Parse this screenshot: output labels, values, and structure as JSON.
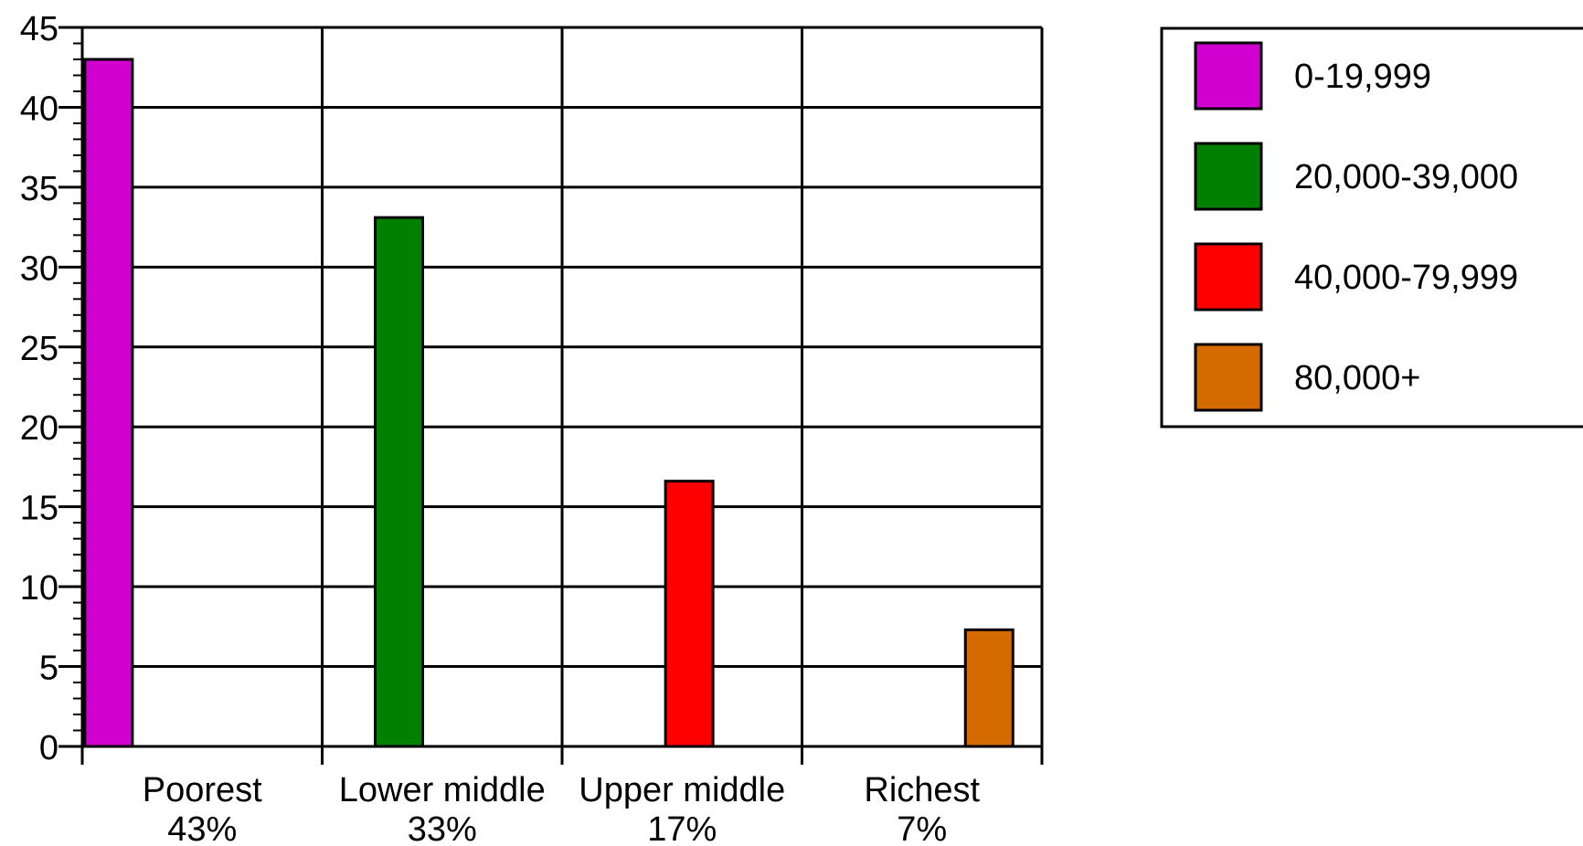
{
  "chart_data": {
    "type": "bar",
    "title": "",
    "xlabel": "",
    "ylabel": "",
    "ylim": [
      0,
      45
    ],
    "y_ticks": [
      "0",
      "5",
      "10",
      "15",
      "20",
      "25",
      "30",
      "35",
      "40",
      "45"
    ],
    "categories": [
      {
        "name": "Poorest",
        "pct": "43%"
      },
      {
        "name": "Lower middle",
        "pct": "33%"
      },
      {
        "name": "Upper middle",
        "pct": "17%"
      },
      {
        "name": "Richest",
        "pct": "7%"
      }
    ],
    "series": [
      {
        "name": "0-19,999",
        "color": "#d100d1",
        "values": [
          43,
          null,
          null,
          null
        ]
      },
      {
        "name": "20,000-39,000",
        "color": "#008000",
        "values": [
          null,
          33.1,
          null,
          null
        ]
      },
      {
        "name": "40,000-79,999",
        "color": "#ff0000",
        "values": [
          null,
          null,
          16.6,
          null
        ]
      },
      {
        "name": "80,000+",
        "color": "#d46a00",
        "values": [
          null,
          null,
          null,
          7.3
        ]
      }
    ],
    "grid": true,
    "legend_position": "top-right"
  }
}
